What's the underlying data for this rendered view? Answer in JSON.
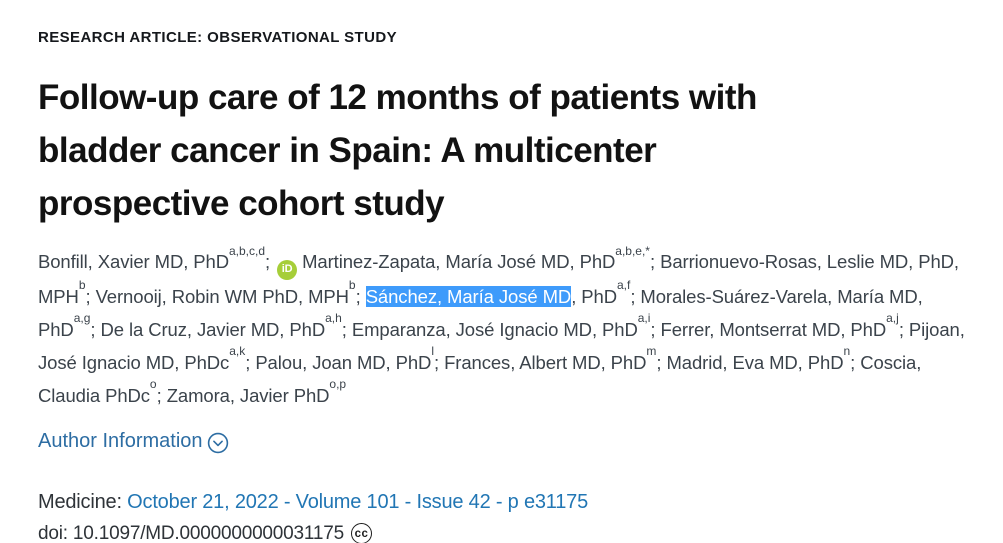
{
  "article": {
    "eyebrow": "RESEARCH ARTICLE: OBSERVATIONAL STUDY",
    "title": "Follow-up care of 12 months of patients with bladder cancer in Spain: A multicenter prospective cohort study",
    "title_lines": [
      "Follow-up care of 12 months of patients with",
      "bladder cancer in Spain: A multicenter",
      "prospective cohort study"
    ]
  },
  "authors": {
    "separator": "; ",
    "orcid_icon_label": "iD",
    "list": [
      {
        "text": "Bonfill, Xavier MD, PhD",
        "sup": "a,b,c,d"
      },
      {
        "orcid": true,
        "text": "Martinez-Zapata, María José MD, PhD",
        "sup": "a,b,e,*"
      },
      {
        "text": "Barrionuevo-Rosas, Leslie MD, PhD, MPH",
        "sup": "b"
      },
      {
        "text": "Vernooij, Robin WM PhD, MPH",
        "sup": "b"
      },
      {
        "highlight": "Sánchez, María José MD",
        "text": ", PhD",
        "sup": "a,f"
      },
      {
        "text": "Morales-Suárez-Varela, María MD, PhD",
        "sup": "a,g"
      },
      {
        "text": "De la Cruz, Javier MD, PhD",
        "sup": "a,h"
      },
      {
        "text": "Emparanza, José Ignacio MD, PhD",
        "sup": "a,i"
      },
      {
        "text": "Ferrer, Montserrat MD, PhD",
        "sup": "a,j"
      },
      {
        "text": "Pijoan, José Ignacio MD, PhDc",
        "sup": "a,k"
      },
      {
        "text": "Palou, Joan MD, PhD",
        "sup": "l"
      },
      {
        "text": "Frances, Albert MD, PhD",
        "sup": "m"
      },
      {
        "text": "Madrid, Eva MD, PhD",
        "sup": "n"
      },
      {
        "text": "Coscia, Claudia PhDc",
        "sup": "o"
      },
      {
        "text": "Zamora, Javier PhD",
        "sup": "o,p"
      }
    ]
  },
  "author_info": {
    "label": "Author Information"
  },
  "citation": {
    "journal_label": "Medicine:",
    "issue_text": "October 21, 2022 - Volume 101 - Issue 42 - p e31175",
    "doi_text": "doi: 10.1097/MD.0000000000031175",
    "cc_icon_label": "cc"
  },
  "colors": {
    "link_blue": "#2d6da3",
    "citation_blue": "#2176b4",
    "selection_highlight_blue": "#3e9bfb",
    "orcid_green": "#a6ce39",
    "heading_black": "#121212",
    "body_text": "#3b434b"
  }
}
